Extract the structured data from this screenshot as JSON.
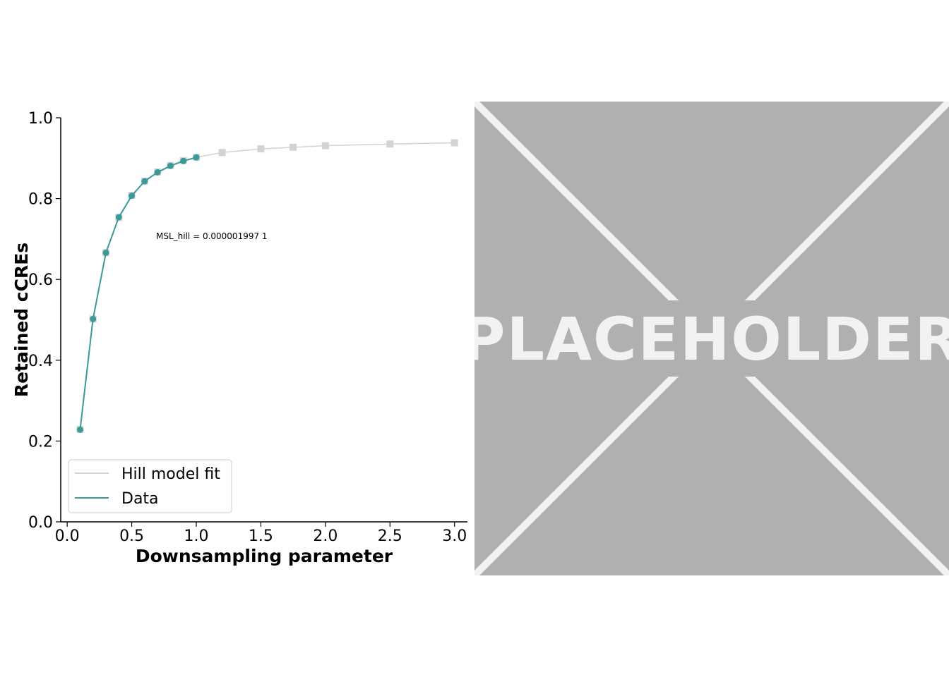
{
  "chart_data": {
    "type": "line",
    "xlabel": "Downsampling parameter",
    "ylabel": "Retained cCREs",
    "xlim": [
      -0.05,
      3.1
    ],
    "ylim": [
      0.0,
      1.0
    ],
    "xticks": [
      "0.0",
      "0.5",
      "1.0",
      "1.5",
      "2.0",
      "2.5",
      "3.0"
    ],
    "yticks": [
      "0.0",
      "0.2",
      "0.4",
      "0.6",
      "0.8",
      "1.0"
    ],
    "annotation": "MSL_hill = 0.000001997 1",
    "legend_position": "lower-left",
    "series": [
      {
        "name": "Hill model fit",
        "color": "#d3d3d3",
        "marker": "square",
        "x": [
          0.1,
          0.2,
          0.3,
          0.4,
          0.5,
          0.6,
          0.7,
          0.8,
          0.9,
          1.0,
          1.2,
          1.5,
          1.75,
          2.0,
          2.5,
          3.0
        ],
        "y": [
          0.229,
          0.502,
          0.666,
          0.753,
          0.808,
          0.843,
          0.866,
          0.882,
          0.894,
          0.902,
          0.914,
          0.923,
          0.927,
          0.931,
          0.935,
          0.938
        ]
      },
      {
        "name": "Data",
        "color": "#3a9a9a",
        "marker": "circle",
        "x": [
          0.1,
          0.2,
          0.3,
          0.4,
          0.5,
          0.6,
          0.7,
          0.8,
          0.9,
          1.0
        ],
        "y": [
          0.228,
          0.502,
          0.666,
          0.754,
          0.807,
          0.843,
          0.865,
          0.881,
          0.893,
          0.902
        ]
      }
    ]
  },
  "placeholder": {
    "text": "PLACEHOLDER"
  }
}
